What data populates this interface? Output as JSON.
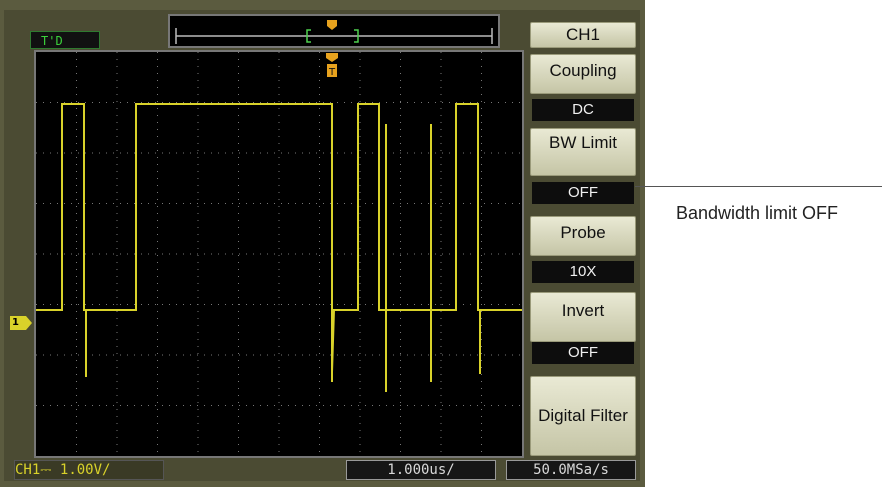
{
  "status": {
    "trigger_state": "T'D"
  },
  "menu": {
    "title": "CH1",
    "coupling": {
      "label": "Coupling",
      "value": "DC"
    },
    "bw_limit": {
      "label": "BW Limit",
      "value": "OFF"
    },
    "probe": {
      "label": "Probe",
      "value": "10X"
    },
    "invert": {
      "label": "Invert",
      "value": "OFF"
    },
    "digital_filter": {
      "label": "Digital Filter"
    }
  },
  "bottom_bar": {
    "channel_scale": "CH1⎓ 1.00V/",
    "timebase": "1.000us/",
    "sample_rate": "50.0MSa/s"
  },
  "channel_marker": "1",
  "callout": {
    "text": "Bandwidth limit OFF"
  },
  "colors": {
    "trace": "#d9d22a",
    "trigger_marker": "#e7a21e",
    "screen_bg": "#000000",
    "bezel": "#5b5b3f",
    "status_text": "#3bd13b"
  }
}
